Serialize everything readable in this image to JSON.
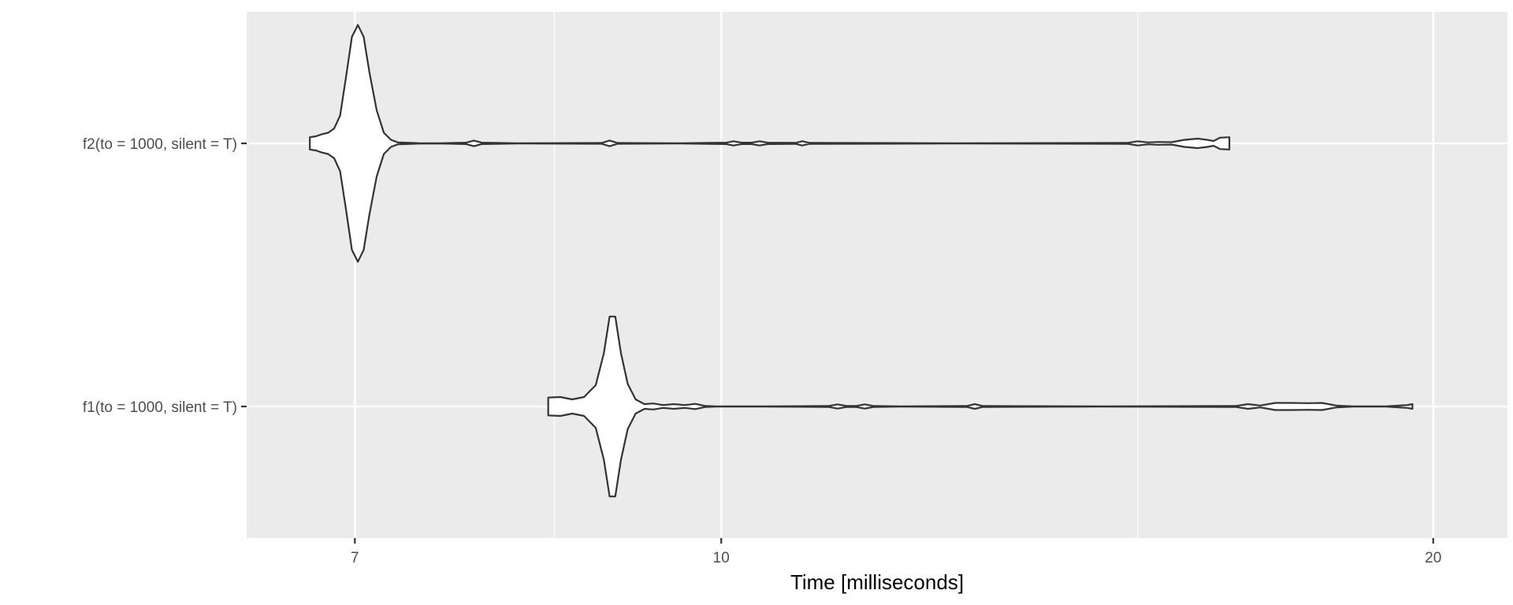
{
  "chart_data": {
    "type": "violin",
    "orientation": "horizontal",
    "xlabel": "Time [milliseconds]",
    "ylabel": "",
    "x_scale": "log",
    "xlim": [
      6.3,
      21.5
    ],
    "x_ticks": [
      7,
      10,
      20
    ],
    "x_minor_gridlines": [
      8.5,
      15
    ],
    "grid": true,
    "legend": "none",
    "categories": [
      "f2(to = 1000, silent = T)",
      "f1(to = 1000, silent = T)"
    ],
    "series": [
      {
        "category": "f2(to = 1000, silent = T)",
        "min": 6.7,
        "max": 16.4,
        "density_profile": [
          [
            6.7,
            0.052
          ],
          [
            6.74,
            0.06
          ],
          [
            6.78,
            0.078
          ],
          [
            6.82,
            0.09
          ],
          [
            6.86,
            0.125
          ],
          [
            6.9,
            0.235
          ],
          [
            6.94,
            0.56
          ],
          [
            6.98,
            0.9
          ],
          [
            7.02,
            1.0
          ],
          [
            7.06,
            0.9
          ],
          [
            7.1,
            0.6
          ],
          [
            7.15,
            0.28
          ],
          [
            7.2,
            0.09
          ],
          [
            7.25,
            0.03
          ],
          [
            7.3,
            0.008
          ],
          [
            7.45,
            0.002
          ],
          [
            7.6,
            0.001
          ],
          [
            7.8,
            0.006
          ],
          [
            7.86,
            0.024
          ],
          [
            7.92,
            0.006
          ],
          [
            8.2,
            0.001
          ],
          [
            8.9,
            0.003
          ],
          [
            8.97,
            0.024
          ],
          [
            9.04,
            0.003
          ],
          [
            9.6,
            0.001
          ],
          [
            10.05,
            0.006
          ],
          [
            10.12,
            0.018
          ],
          [
            10.2,
            0.006
          ],
          [
            10.3,
            0.006
          ],
          [
            10.38,
            0.018
          ],
          [
            10.46,
            0.006
          ],
          [
            10.75,
            0.004
          ],
          [
            10.82,
            0.018
          ],
          [
            10.9,
            0.004
          ],
          [
            12.5,
            0.001
          ],
          [
            14.85,
            0.004
          ],
          [
            15.0,
            0.018
          ],
          [
            15.15,
            0.008
          ],
          [
            15.3,
            0.012
          ],
          [
            15.5,
            0.01
          ],
          [
            15.7,
            0.03
          ],
          [
            15.9,
            0.04
          ],
          [
            16.05,
            0.03
          ],
          [
            16.15,
            0.02
          ],
          [
            16.25,
            0.048
          ],
          [
            16.4,
            0.052
          ]
        ]
      },
      {
        "category": "f1(to = 1000, silent = T)",
        "min": 8.45,
        "max": 19.6,
        "density_profile": [
          [
            8.45,
            0.075
          ],
          [
            8.55,
            0.08
          ],
          [
            8.65,
            0.06
          ],
          [
            8.75,
            0.08
          ],
          [
            8.85,
            0.18
          ],
          [
            8.92,
            0.45
          ],
          [
            8.97,
            0.76
          ],
          [
            9.02,
            0.76
          ],
          [
            9.07,
            0.45
          ],
          [
            9.13,
            0.19
          ],
          [
            9.2,
            0.06
          ],
          [
            9.28,
            0.02
          ],
          [
            9.36,
            0.025
          ],
          [
            9.45,
            0.012
          ],
          [
            9.55,
            0.02
          ],
          [
            9.65,
            0.012
          ],
          [
            9.75,
            0.022
          ],
          [
            9.85,
            0.004
          ],
          [
            9.95,
            0.001
          ],
          [
            10.4,
            0.001
          ],
          [
            11.1,
            0.004
          ],
          [
            11.2,
            0.018
          ],
          [
            11.3,
            0.004
          ],
          [
            11.4,
            0.004
          ],
          [
            11.5,
            0.018
          ],
          [
            11.6,
            0.004
          ],
          [
            11.9,
            0.001
          ],
          [
            12.7,
            0.004
          ],
          [
            12.8,
            0.02
          ],
          [
            12.9,
            0.004
          ],
          [
            14.5,
            0.001
          ],
          [
            16.5,
            0.004
          ],
          [
            16.7,
            0.02
          ],
          [
            16.9,
            0.008
          ],
          [
            17.15,
            0.03
          ],
          [
            17.4,
            0.03
          ],
          [
            17.7,
            0.028
          ],
          [
            17.95,
            0.03
          ],
          [
            18.2,
            0.008
          ],
          [
            18.5,
            0.001
          ],
          [
            19.1,
            0.001
          ],
          [
            19.5,
            0.012
          ],
          [
            19.6,
            0.02
          ]
        ]
      }
    ]
  }
}
